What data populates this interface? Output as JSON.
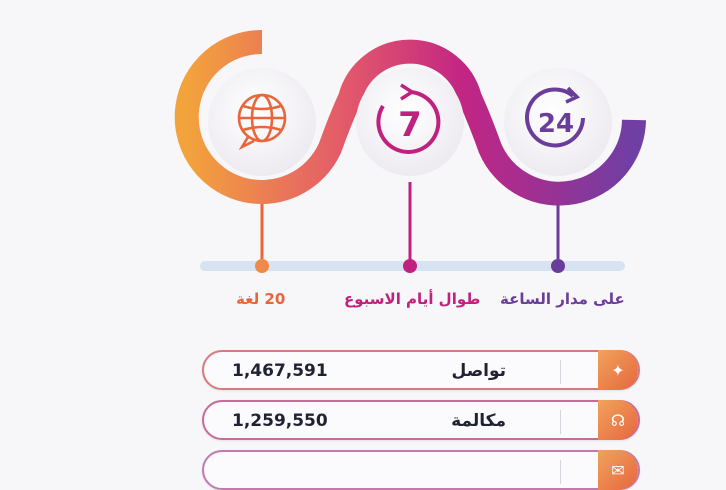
{
  "features": [
    {
      "label": "20 لغة",
      "icon": "globe-chat-icon",
      "color": "#e8663a"
    },
    {
      "label": "طوال أيام الاسبوع",
      "icon": "seven-days-icon",
      "icon_text": "7",
      "color": "#c0217e"
    },
    {
      "label": "على مدار الساعة",
      "icon": "24-hours-icon",
      "icon_text": "24",
      "color": "#6a3d9a"
    }
  ],
  "stats": [
    {
      "value": "1,467,591",
      "label": "تواصل",
      "icon": "network-icon"
    },
    {
      "value": "1,259,550",
      "label": "مكالمة",
      "icon": "headset-icon"
    },
    {
      "value": "",
      "label": "",
      "icon": "chat-icon"
    }
  ],
  "colors": {
    "orange": "#ef8a3b",
    "magenta": "#c0217e",
    "purple": "#6a3d9a",
    "track": "#d7e3f3"
  }
}
